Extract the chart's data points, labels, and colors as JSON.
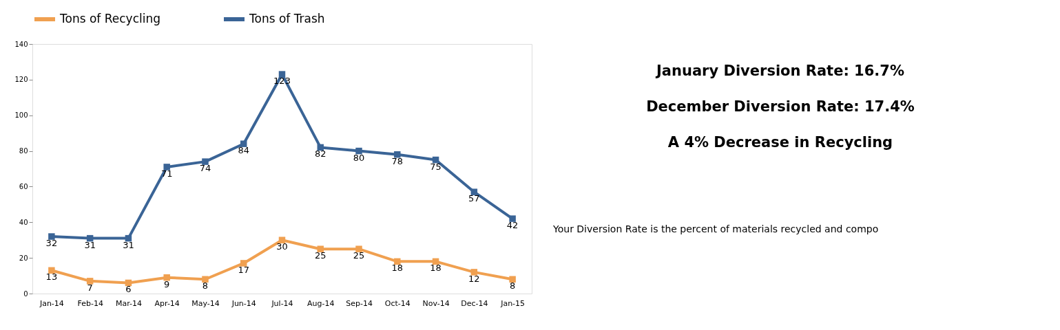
{
  "chart_data": {
    "type": "line",
    "categories": [
      "Jan-14",
      "Feb-14",
      "Mar-14",
      "Apr-14",
      "May-14",
      "Jun-14",
      "Jul-14",
      "Aug-14",
      "Sep-14",
      "Oct-14",
      "Nov-14",
      "Dec-14",
      "Jan-15"
    ],
    "series": [
      {
        "name": "Tons of Recycling",
        "color": "#f0a050",
        "values": [
          13,
          7,
          6,
          9,
          8,
          17,
          30,
          25,
          25,
          18,
          18,
          12,
          8
        ]
      },
      {
        "name": "Tons of Trash",
        "color": "#3a6496",
        "values": [
          32,
          31,
          31,
          71,
          74,
          84,
          123,
          82,
          80,
          78,
          75,
          57,
          42
        ]
      }
    ],
    "ylim": [
      0,
      140
    ],
    "yticks": [
      0,
      20,
      40,
      60,
      80,
      100,
      120,
      140
    ],
    "grid": false,
    "legend": "top",
    "marker": "square",
    "data_labels": true,
    "annotations": [
      "January Diversion Rate: 16.7%",
      "December Diversion Rate: 17.4%",
      "A 4% Decrease in Recycling",
      "Your Diversion Rate is the percent of materials recycled and compo"
    ]
  }
}
